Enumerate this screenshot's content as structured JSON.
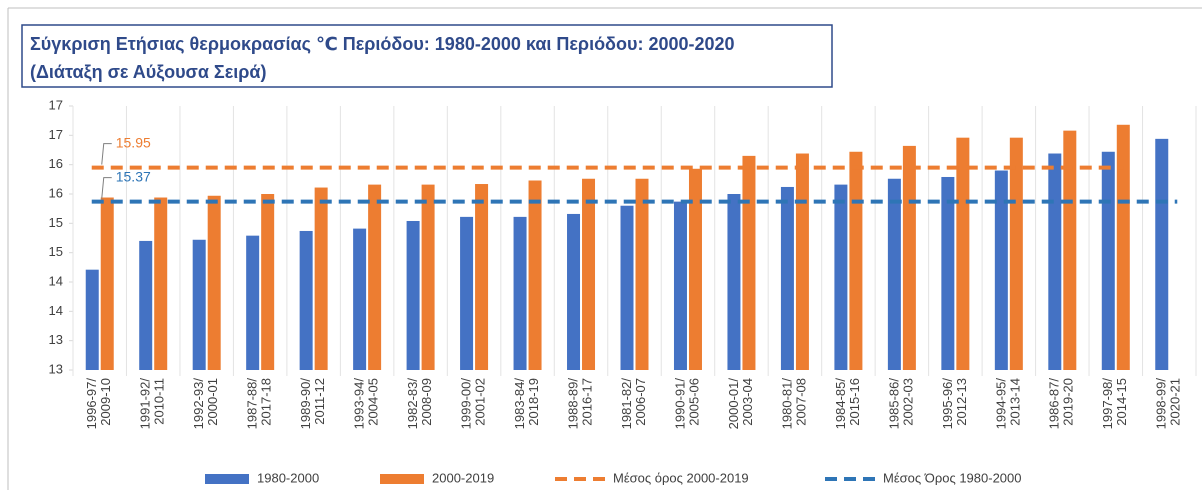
{
  "chart_data": {
    "type": "bar",
    "title": "Σύγκριση Ετήσιας θερμοκρασίας ℃ Περιόδου: 1980-2000 και Περιόδου: 2000-2020",
    "subtitle": "(Διάταξη σε Αύξουσα Σειρά)",
    "categories": [
      [
        "1996-97/",
        "2009-10"
      ],
      [
        "1991-92/",
        "2010-11"
      ],
      [
        "1992-93/",
        "2000-01"
      ],
      [
        "1987-88/",
        "2017-18"
      ],
      [
        "1989-90/",
        "2011-12"
      ],
      [
        "1993-94/",
        "2004-05"
      ],
      [
        "1982-83/",
        "2008-09"
      ],
      [
        "1999-00/",
        "2001-02"
      ],
      [
        "1983-84/",
        "2018-19"
      ],
      [
        "1988-89/",
        "2016-17"
      ],
      [
        "1981-82/",
        "2006-07"
      ],
      [
        "1990-91/",
        "2005-06"
      ],
      [
        "2000-01/",
        "2003-04"
      ],
      [
        "1980-81/",
        "2007-08"
      ],
      [
        "1984-85/",
        "2015-16"
      ],
      [
        "1985-86/",
        "2002-03"
      ],
      [
        "1995-96/",
        "2012-13"
      ],
      [
        "1994-95/",
        "2013-14"
      ],
      [
        "1986-87/",
        "2019-20"
      ],
      [
        "1997-98/",
        "2014-15"
      ],
      [
        "1998-99/",
        "2020-21"
      ]
    ],
    "series": [
      {
        "name": "1980-2000",
        "color": "#4472c4",
        "values": [
          14.21,
          14.7,
          14.72,
          14.79,
          14.87,
          14.91,
          15.04,
          15.11,
          15.11,
          15.16,
          15.3,
          15.37,
          15.5,
          15.62,
          15.66,
          15.76,
          15.79,
          15.9,
          16.19,
          16.22,
          16.44
        ]
      },
      {
        "name": "2000-2019",
        "color": "#ed7d31",
        "values": [
          15.44,
          15.44,
          15.47,
          15.5,
          15.61,
          15.66,
          15.66,
          15.67,
          15.73,
          15.76,
          15.76,
          15.93,
          16.15,
          16.19,
          16.22,
          16.32,
          16.46,
          16.46,
          16.58,
          16.68,
          null
        ]
      }
    ],
    "reference_lines": [
      {
        "name": "Μέσος όρος 2000-2019",
        "color": "#ed7d31",
        "value": 15.95
      },
      {
        "name": "Μέσος Όρος 1980-2000",
        "color": "#2e75b6",
        "value": 15.37
      }
    ],
    "ylim": [
      12.5,
      17
    ],
    "yticks": [
      {
        "value": 12.5,
        "label": "13"
      },
      13,
      {
        "value": 13.5,
        "label": "14"
      },
      14,
      {
        "value": 14.5,
        "label": "15"
      },
      15,
      {
        "value": 15.5,
        "label": "16"
      },
      16,
      {
        "value": 16.5,
        "label": "17"
      },
      17
    ],
    "legend": "bottom"
  }
}
